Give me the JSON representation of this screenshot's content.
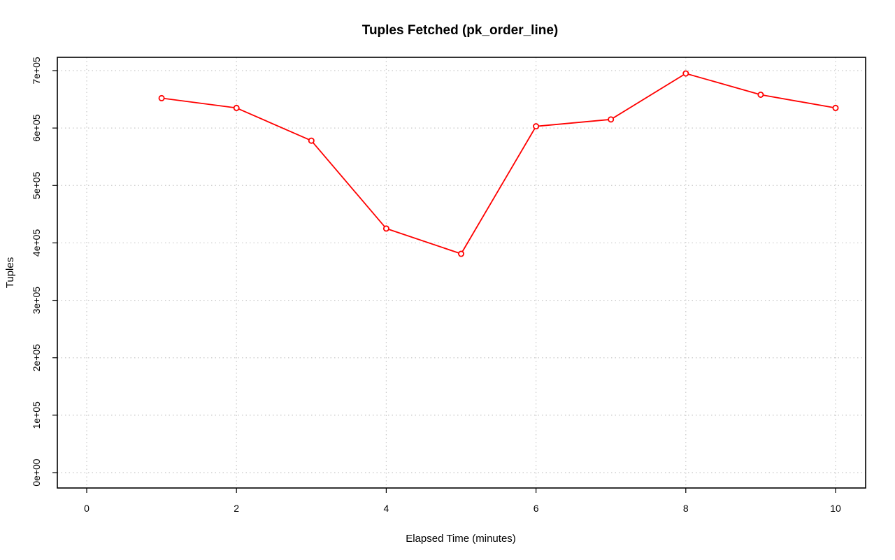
{
  "chart_data": {
    "type": "line",
    "title": "Tuples Fetched (pk_order_line)",
    "xlabel": "Elapsed Time (minutes)",
    "ylabel": "Tuples",
    "xlim": [
      0,
      10
    ],
    "ylim": [
      0,
      700000
    ],
    "x_ticks": [
      0,
      2,
      4,
      6,
      8,
      10
    ],
    "x_tick_labels": [
      "0",
      "2",
      "4",
      "6",
      "8",
      "10"
    ],
    "y_ticks": [
      0,
      100000,
      200000,
      300000,
      400000,
      500000,
      600000,
      700000
    ],
    "y_tick_labels": [
      "0e+00",
      "1e+05",
      "2e+05",
      "3e+05",
      "4e+05",
      "5e+05",
      "6e+05",
      "7e+05"
    ],
    "grid": true,
    "series": [
      {
        "color": "#ff0000",
        "marker": "circle",
        "x": [
          1,
          2,
          3,
          4,
          5,
          6,
          7,
          8,
          9,
          10
        ],
        "values": [
          652000,
          635000,
          578000,
          425000,
          381000,
          603000,
          615000,
          695000,
          658000,
          635000
        ]
      }
    ]
  }
}
